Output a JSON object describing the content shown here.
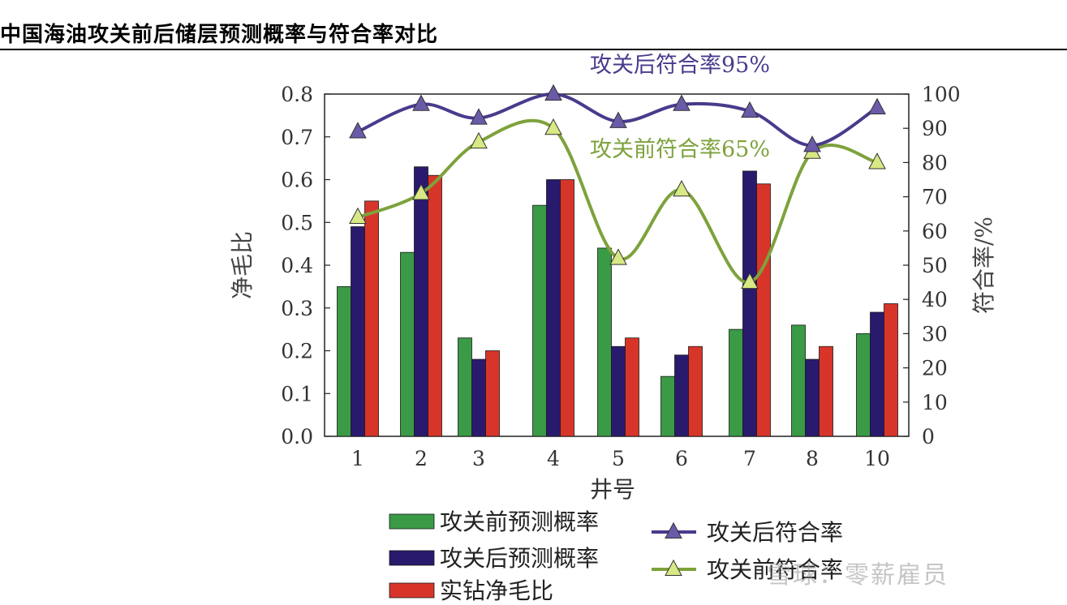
{
  "page": {
    "title": "中国海油攻关前后储层预测概率与符合率对比",
    "watermark": "雪球：零薪雇员"
  },
  "chart_data": {
    "type": "bar",
    "xlabel": "井号",
    "ylabel": "净毛比",
    "y2label": "符合率/%",
    "ylim": [
      0,
      0.8
    ],
    "y2lim": [
      0,
      100
    ],
    "yticks": [
      "0.0",
      "0.1",
      "0.2",
      "0.3",
      "0.4",
      "0.5",
      "0.6",
      "0.7",
      "0.8"
    ],
    "y2ticks": [
      "0",
      "10",
      "20",
      "30",
      "40",
      "50",
      "60",
      "70",
      "80",
      "90",
      "100"
    ],
    "categories": [
      "1",
      "2",
      "3",
      "4",
      "5",
      "6",
      "7",
      "8",
      "10"
    ],
    "bar_series": [
      {
        "name": "攻关前预测概率",
        "color": "#3a9a45",
        "values": [
          0.35,
          0.43,
          0.23,
          0.54,
          0.44,
          0.14,
          0.25,
          0.26,
          0.24
        ]
      },
      {
        "name": "攻关后预测概率",
        "color": "#2a1a6e",
        "values": [
          0.49,
          0.63,
          0.18,
          0.6,
          0.21,
          0.19,
          0.62,
          0.18,
          0.29
        ]
      },
      {
        "name": "实钻净毛比",
        "color": "#d8352a",
        "values": [
          0.55,
          0.61,
          0.2,
          0.6,
          0.23,
          0.21,
          0.59,
          0.21,
          0.31
        ]
      }
    ],
    "line_series": [
      {
        "name": "攻关后符合率",
        "color": "#4a3a8c",
        "marker_color": "#6b5aa8",
        "values": [
          89,
          97,
          93,
          100,
          92,
          97,
          95,
          85,
          96
        ]
      },
      {
        "name": "攻关前符合率",
        "color": "#7da23c",
        "marker_color": "#d7e884",
        "values": [
          64,
          71,
          86,
          90,
          52,
          72,
          45,
          83,
          80
        ]
      }
    ],
    "annotations": [
      {
        "text": "攻关后符合率95%",
        "color": "#4a3a8c"
      },
      {
        "text": "攻关前符合率65%",
        "color": "#7da23c"
      }
    ],
    "legend": {
      "placement": "bottom",
      "items": [
        "攻关前预测概率",
        "攻关后预测概率",
        "实钻净毛比",
        "攻关后符合率",
        "攻关前符合率"
      ]
    }
  }
}
